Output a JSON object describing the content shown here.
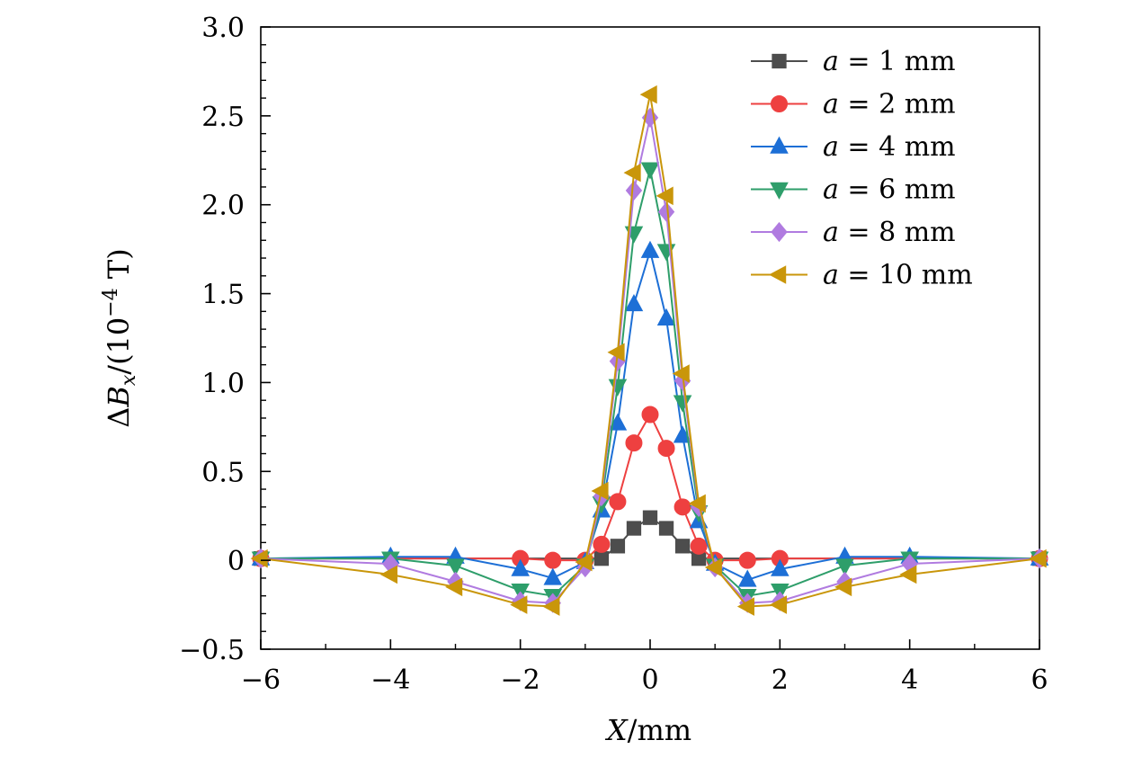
{
  "chart_data": {
    "type": "line",
    "title": "",
    "xlabel": {
      "var": "X",
      "unit": "/mm"
    },
    "ylabel": {
      "prefix": "Δ",
      "var": "B",
      "sub": "x",
      "unit_open": "/(10",
      "exp": "−4",
      "unit_close": " T)"
    },
    "xlim": [
      -6,
      6
    ],
    "ylim": [
      -0.5,
      3.0
    ],
    "xticks": [
      -6,
      -4,
      -2,
      0,
      2,
      4,
      6
    ],
    "xtick_labels": [
      "−6",
      "−4",
      "−2",
      "0",
      "2",
      "4",
      "6"
    ],
    "yticks": [
      -0.5,
      0,
      0.5,
      1.0,
      1.5,
      2.0,
      2.5,
      3.0
    ],
    "ytick_labels": [
      "−0.5",
      "0",
      "0.5",
      "1.0",
      "1.5",
      "2.0",
      "2.5",
      "3.0"
    ],
    "grid": false,
    "legend_position": "top-right",
    "series": [
      {
        "name": "a = 1 mm",
        "legend_var": "a",
        "legend_value": "1 mm",
        "color": "#4d4d4d",
        "marker": "square",
        "x": [
          -6,
          -0.75,
          -0.5,
          -0.25,
          0,
          0.25,
          0.5,
          0.75,
          6
        ],
        "y": [
          0.01,
          0.01,
          0.08,
          0.18,
          0.24,
          0.18,
          0.08,
          0.01,
          0.01
        ]
      },
      {
        "name": "a = 2 mm",
        "legend_var": "a",
        "legend_value": "2 mm",
        "color": "#ee4040",
        "marker": "circle",
        "x": [
          -6,
          -2,
          -1.5,
          -1,
          -0.75,
          -0.5,
          -0.25,
          0,
          0.25,
          0.5,
          0.75,
          1,
          1.5,
          2,
          6
        ],
        "y": [
          0.01,
          0.01,
          0.0,
          0.0,
          0.09,
          0.33,
          0.66,
          0.82,
          0.63,
          0.3,
          0.08,
          0.0,
          0.0,
          0.01,
          0.01
        ]
      },
      {
        "name": "a = 4 mm",
        "legend_var": "a",
        "legend_value": "4 mm",
        "color": "#1d6fd6",
        "marker": "triangle-up",
        "x": [
          -6,
          -4,
          -3,
          -2,
          -1.5,
          -1,
          -0.75,
          -0.5,
          -0.25,
          0,
          0.25,
          0.5,
          0.75,
          1,
          1.5,
          2,
          3,
          4,
          6
        ],
        "y": [
          0.01,
          0.02,
          0.02,
          -0.05,
          -0.1,
          -0.01,
          0.28,
          0.77,
          1.44,
          1.74,
          1.36,
          0.7,
          0.22,
          -0.02,
          -0.11,
          -0.05,
          0.02,
          0.02,
          0.01
        ]
      },
      {
        "name": "a = 6 mm",
        "legend_var": "a",
        "legend_value": "6 mm",
        "color": "#2e9e6a",
        "marker": "triangle-down",
        "x": [
          -6,
          -4,
          -3,
          -2,
          -1.5,
          -1,
          -0.75,
          -0.5,
          -0.25,
          0,
          0.25,
          0.5,
          0.75,
          1,
          1.5,
          2,
          3,
          4,
          6
        ],
        "y": [
          0.01,
          0.01,
          -0.03,
          -0.17,
          -0.2,
          -0.03,
          0.32,
          0.98,
          1.84,
          2.2,
          1.74,
          0.89,
          0.27,
          -0.03,
          -0.2,
          -0.17,
          -0.03,
          0.01,
          0.01
        ]
      },
      {
        "name": "a = 8 mm",
        "legend_var": "a",
        "legend_value": "8 mm",
        "color": "#b07be0",
        "marker": "diamond",
        "x": [
          -6,
          -4,
          -3,
          -2,
          -1.5,
          -1,
          -0.75,
          -0.5,
          -0.25,
          0,
          0.25,
          0.5,
          0.75,
          1,
          1.5,
          2,
          3,
          4,
          6
        ],
        "y": [
          0.01,
          -0.02,
          -0.12,
          -0.23,
          -0.24,
          -0.04,
          0.36,
          1.12,
          2.08,
          2.49,
          1.96,
          1.01,
          0.3,
          -0.04,
          -0.24,
          -0.23,
          -0.12,
          -0.02,
          0.01
        ]
      },
      {
        "name": "a = 10 mm",
        "legend_var": "a",
        "legend_value": "10 mm",
        "color": "#c9960a",
        "marker": "triangle-left",
        "x": [
          -6,
          -4,
          -3,
          -2,
          -1.5,
          -1,
          -0.75,
          -0.5,
          -0.25,
          0,
          0.25,
          0.5,
          0.75,
          1,
          1.5,
          2,
          3,
          4,
          6
        ],
        "y": [
          0.01,
          -0.08,
          -0.15,
          -0.25,
          -0.26,
          -0.01,
          0.39,
          1.17,
          2.18,
          2.62,
          2.05,
          1.05,
          0.32,
          -0.04,
          -0.26,
          -0.25,
          -0.15,
          -0.08,
          0.01
        ]
      }
    ]
  }
}
